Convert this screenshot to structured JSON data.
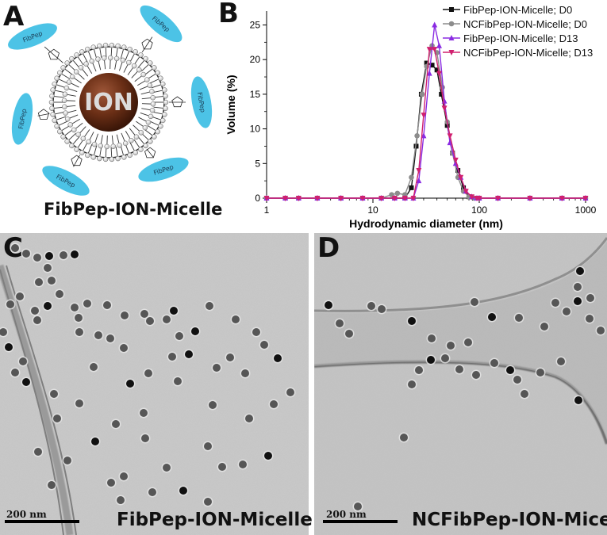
{
  "panels": {
    "a": {
      "letter": "A",
      "core_label": "ION",
      "peptide_label": "FibPep",
      "caption": "FibPep-ION-Micelle",
      "colors": {
        "peptide": "#4cc3e6",
        "core": "#6b2f16",
        "shell": "#2a2a2a"
      }
    },
    "b": {
      "letter": "B",
      "ylabel": "Volume (%)",
      "xlabel": "Hydrodynamic diameter (nm)"
    },
    "c": {
      "letter": "C",
      "scalebar": "200 nm",
      "caption": "FibPep-ION-Micelle"
    },
    "d": {
      "letter": "D",
      "scalebar": "200 nm",
      "caption": "NCFibPep-ION-Micelle"
    }
  },
  "chart_data": {
    "type": "line",
    "xscale": "log",
    "xlim": [
      1,
      1000
    ],
    "ylim": [
      0,
      27
    ],
    "xticks": [
      1,
      10,
      100,
      1000
    ],
    "xtick_labels": [
      "1",
      "10",
      "100",
      "1000"
    ],
    "yticks": [
      0,
      5,
      10,
      15,
      20,
      25
    ],
    "ytick_labels": [
      "0",
      "5",
      "10",
      "15",
      "20",
      "25"
    ],
    "xlabel": "Hydrodynamic diameter (nm)",
    "ylabel": "Volume (%)",
    "legend_position": "top-right",
    "series": [
      {
        "name": "FibPep-ION-Micelle; D0",
        "color": "#111111",
        "marker": "square",
        "x": [
          1,
          1.5,
          2,
          3,
          5,
          8,
          12,
          16,
          20,
          23,
          25.5,
          28.5,
          32,
          36,
          40,
          44,
          50,
          56,
          63,
          71,
          80,
          90,
          100,
          150,
          300,
          600,
          1000
        ],
        "y": [
          0,
          0,
          0,
          0,
          0,
          0,
          0,
          0,
          0,
          1.5,
          7.5,
          15,
          19.5,
          19.2,
          18.5,
          15,
          10.5,
          6.5,
          4,
          1.5,
          0.2,
          0,
          0,
          0,
          0,
          0,
          0
        ]
      },
      {
        "name": "NCFibPep-ION-Micelle; D0",
        "color": "#8c8c8c",
        "marker": "circle",
        "x": [
          1,
          1.5,
          2,
          3,
          5,
          8,
          12,
          15,
          17,
          20,
          23,
          26,
          29,
          32,
          36,
          40,
          45,
          50,
          56,
          63,
          71,
          80,
          90,
          100,
          150,
          300,
          600,
          1000
        ],
        "y": [
          0,
          0,
          0,
          0,
          0,
          0,
          0,
          0.5,
          0.7,
          0.5,
          3,
          9,
          15,
          19,
          22,
          21,
          16,
          11,
          6.5,
          3,
          1,
          0.2,
          0,
          0,
          0,
          0,
          0,
          0
        ]
      },
      {
        "name": "FibPep-ION-Micelle; D13",
        "color": "#8a2be2",
        "marker": "triangle-up",
        "x": [
          1,
          1.5,
          2,
          3,
          5,
          8,
          12,
          16,
          20,
          24,
          27,
          30,
          34,
          38,
          42,
          47,
          53,
          60,
          67,
          75,
          85,
          95,
          100,
          150,
          300,
          600,
          1000
        ],
        "y": [
          0,
          0,
          0,
          0,
          0,
          0,
          0,
          0,
          0,
          0,
          2.5,
          9,
          18,
          25,
          22,
          14,
          8,
          5,
          3,
          1,
          0.2,
          0,
          0,
          0,
          0,
          0,
          0
        ]
      },
      {
        "name": "NCFibPep-ION-Micelle; D13",
        "color": "#d0206f",
        "marker": "triangle-down",
        "x": [
          1,
          1.5,
          2,
          3,
          5,
          8,
          12,
          16,
          20,
          24,
          27,
          30,
          34,
          38,
          42,
          47,
          53,
          60,
          67,
          75,
          85,
          95,
          100,
          150,
          300,
          600,
          1000
        ],
        "y": [
          0,
          0,
          0,
          0,
          0,
          0,
          0,
          0,
          0,
          0,
          4,
          12,
          21.5,
          21.5,
          18,
          13,
          9,
          5.5,
          3,
          1,
          0.2,
          0,
          0,
          0,
          0,
          0,
          0
        ]
      }
    ]
  }
}
